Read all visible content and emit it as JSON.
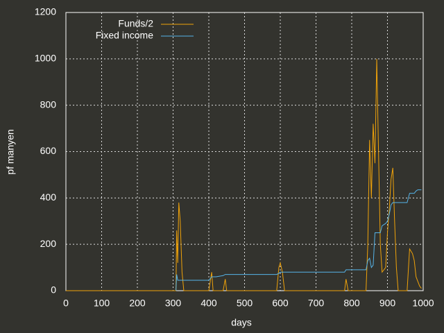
{
  "chart_data": {
    "type": "line",
    "xlabel": "days",
    "ylabel": "pf manyen",
    "x": [
      0,
      300,
      308,
      310,
      313,
      316,
      320,
      325,
      330,
      400,
      408,
      412,
      420,
      440,
      446,
      450,
      590,
      596,
      600,
      606,
      612,
      780,
      784,
      790,
      840,
      845,
      850,
      855,
      860,
      865,
      870,
      875,
      880,
      885,
      895,
      900,
      905,
      910,
      915,
      920,
      925,
      930,
      955,
      962,
      970,
      975,
      980,
      985,
      990,
      995
    ],
    "series": [
      {
        "name": "Funds/2",
        "color": "#f0a30a",
        "values": [
          0,
          0,
          0,
          260,
          120,
          380,
          300,
          80,
          0,
          0,
          80,
          0,
          0,
          0,
          50,
          0,
          0,
          100,
          120,
          80,
          0,
          0,
          50,
          0,
          0,
          200,
          650,
          400,
          720,
          550,
          1000,
          600,
          200,
          80,
          100,
          250,
          350,
          480,
          530,
          300,
          100,
          0,
          0,
          180,
          160,
          130,
          60,
          40,
          20,
          10
        ]
      },
      {
        "name": "Fixed income",
        "color": "#56b4e9",
        "values": [
          null,
          null,
          0,
          70,
          45,
          45,
          45,
          45,
          45,
          45,
          60,
          60,
          60,
          65,
          70,
          70,
          70,
          75,
          80,
          80,
          80,
          80,
          90,
          90,
          90,
          130,
          140,
          100,
          110,
          250,
          250,
          250,
          250,
          280,
          290,
          300,
          330,
          370,
          380,
          380,
          380,
          380,
          380,
          420,
          420,
          420,
          430,
          435,
          435,
          435
        ]
      }
    ],
    "xlim": [
      0,
      1000
    ],
    "xticks": [
      0,
      100,
      200,
      300,
      400,
      500,
      600,
      700,
      800,
      900,
      1000
    ],
    "ylim": [
      0,
      1200
    ],
    "yticks": [
      0,
      200,
      400,
      600,
      800,
      1000,
      1200
    ],
    "grid": true,
    "legend": "top-left"
  }
}
